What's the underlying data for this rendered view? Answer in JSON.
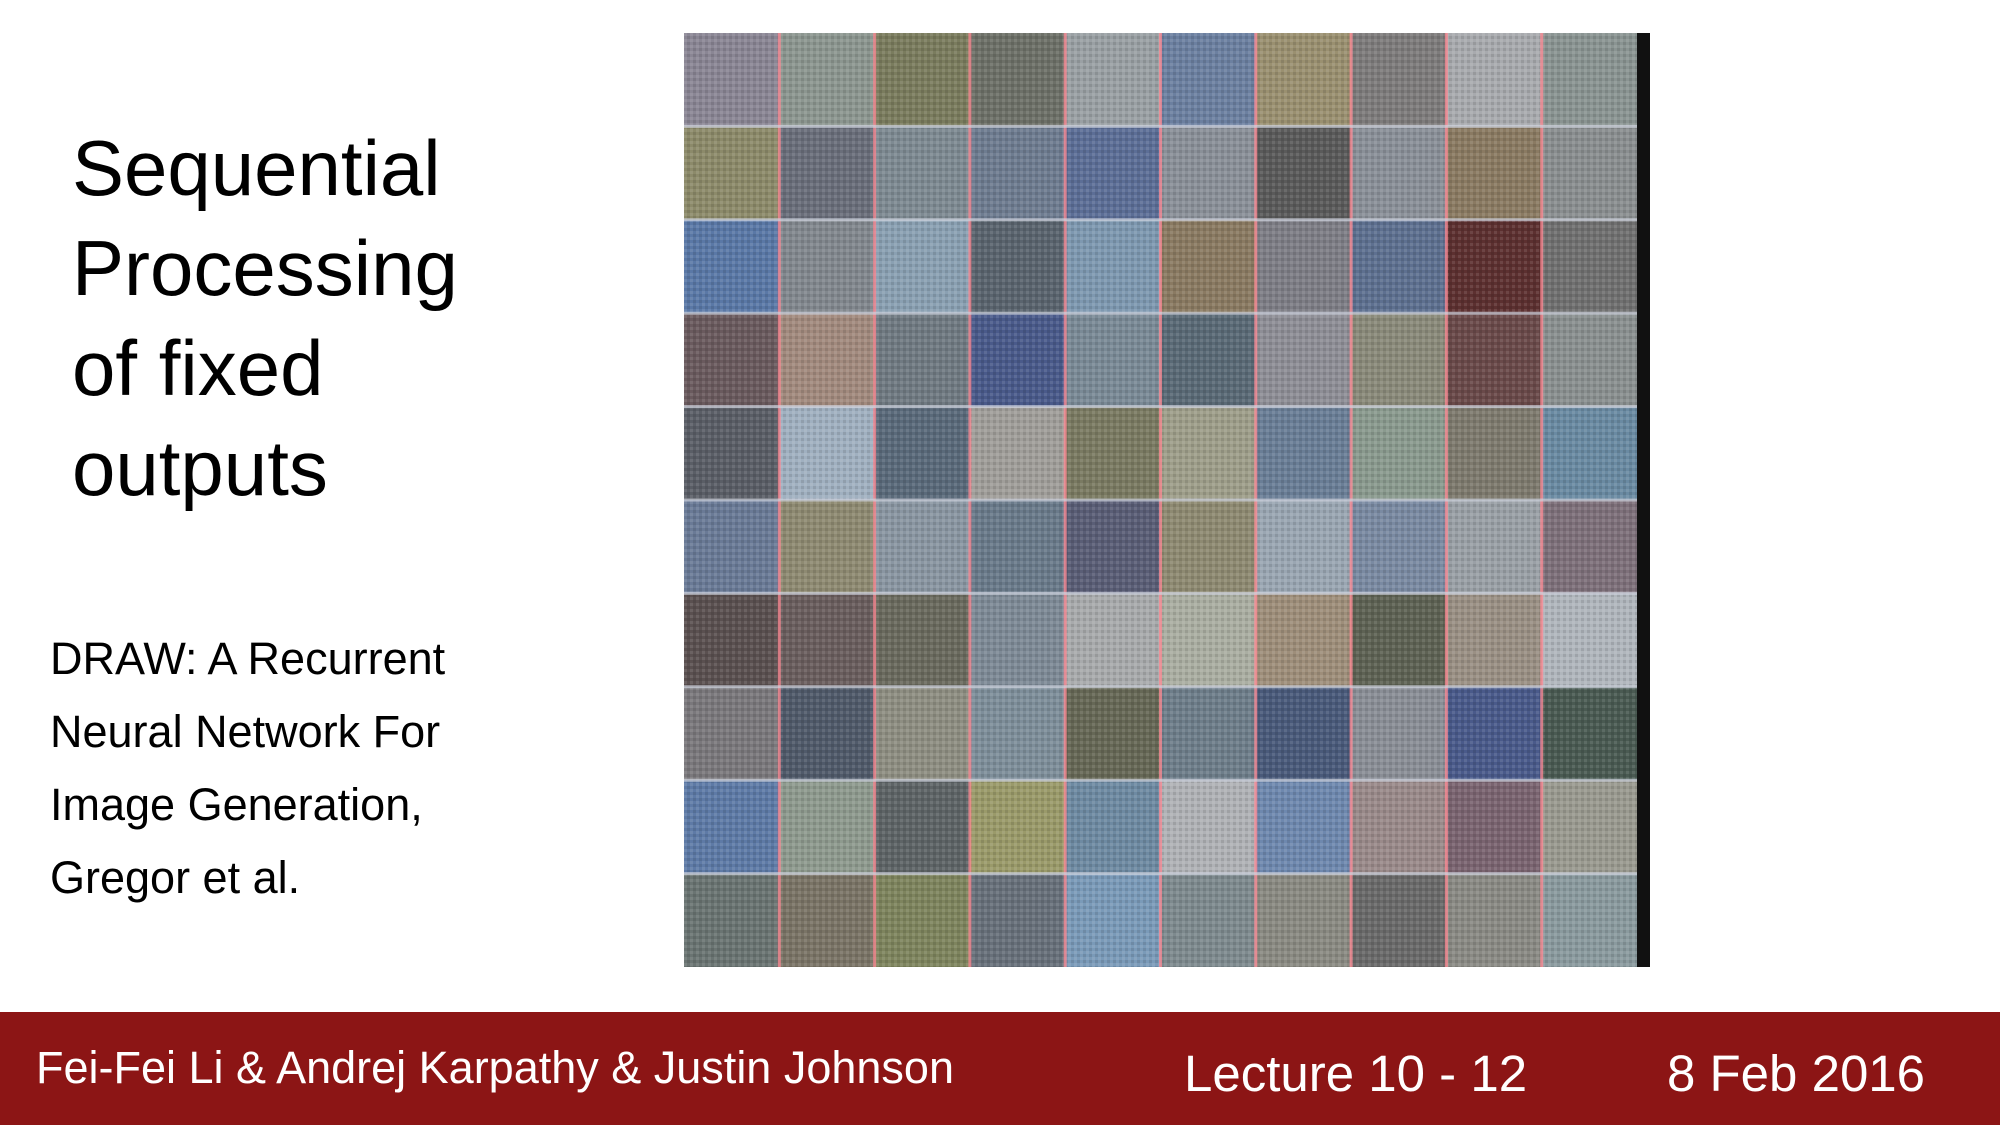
{
  "slide": {
    "title_lines": [
      "Sequential",
      "Processing",
      "of fixed",
      "outputs"
    ],
    "citation_lines": [
      "DRAW: A Recurrent",
      "Neural Network For",
      "Image Generation,",
      "Gregor et al."
    ]
  },
  "footer": {
    "authors": "Fei-Fei Li & Andrej Karpathy & Justin Johnson",
    "lecture": "Lecture 10 -  12",
    "date": "8 Feb 2016",
    "background_color": "#8c1515",
    "text_color": "#ffffff"
  },
  "figure": {
    "rows": 10,
    "cols": 10,
    "gridline_color": "#ff8a94",
    "tile_colors": [
      [
        "#8a8694",
        "#8c9690",
        "#7a7c5e",
        "#6d7068",
        "#9aa0a4",
        "#6c80a0",
        "#9a9070",
        "#7e7c7c",
        "#a8aaae",
        "#8a9492"
      ],
      [
        "#8c8a6a",
        "#6a6e7a",
        "#7e8a92",
        "#6e7c90",
        "#5c6e96",
        "#8a9098",
        "#5a5a5a",
        "#8a9098",
        "#8a7a62",
        "#8a8e90"
      ],
      [
        "#5a78a6",
        "#82888e",
        "#8aa0b2",
        "#5a646e",
        "#7e98b0",
        "#8a7a62",
        "#7e7e86",
        "#5e7090",
        "#5c3030",
        "#707070"
      ],
      [
        "#6a5a5e",
        "#a28a7e",
        "#707a82",
        "#4a5a8a",
        "#7a8a96",
        "#5a6a76",
        "#8e8e96",
        "#8a8a7a",
        "#6a4a4a",
        "#8a9090"
      ],
      [
        "#5a5e66",
        "#a0b0c0",
        "#5a6a7a",
        "#a09e9a",
        "#7a7a62",
        "#9e9e8a",
        "#6a7e96",
        "#8a9a8e",
        "#7e7a6e",
        "#6a8aa2"
      ],
      [
        "#6a7a96",
        "#8e8a72",
        "#8a96a2",
        "#6a7a8a",
        "#5a5e76",
        "#8e8a72",
        "#9aa6b2",
        "#7a8aa2",
        "#9aa0a6",
        "#7e707a"
      ],
      [
        "#5a5050",
        "#6a5e5e",
        "#6a6a5e",
        "#7e8a96",
        "#a8aaac",
        "#aaaea2",
        "#9e8e7a",
        "#5e6254",
        "#9a9084",
        "#b0b6bc"
      ],
      [
        "#7a787c",
        "#505a6a",
        "#8e8e82",
        "#7e8e9a",
        "#666856",
        "#6e7e8a",
        "#4a5a7a",
        "#8a8e96",
        "#4a5a8a",
        "#4a5a52"
      ],
      [
        "#5e7aa6",
        "#8e9a8e",
        "#5e6466",
        "#9a9a6a",
        "#6e8aa2",
        "#b0b2b6",
        "#6e88ae",
        "#9a8a8a",
        "#7a6470",
        "#9a9a90"
      ],
      [
        "#6a7472",
        "#7a7466",
        "#7e845e",
        "#68707a",
        "#7a9ab8",
        "#7e8a8e",
        "#8a8a82",
        "#6a6a6a",
        "#8a8a84",
        "#8a9a9e"
      ]
    ]
  }
}
